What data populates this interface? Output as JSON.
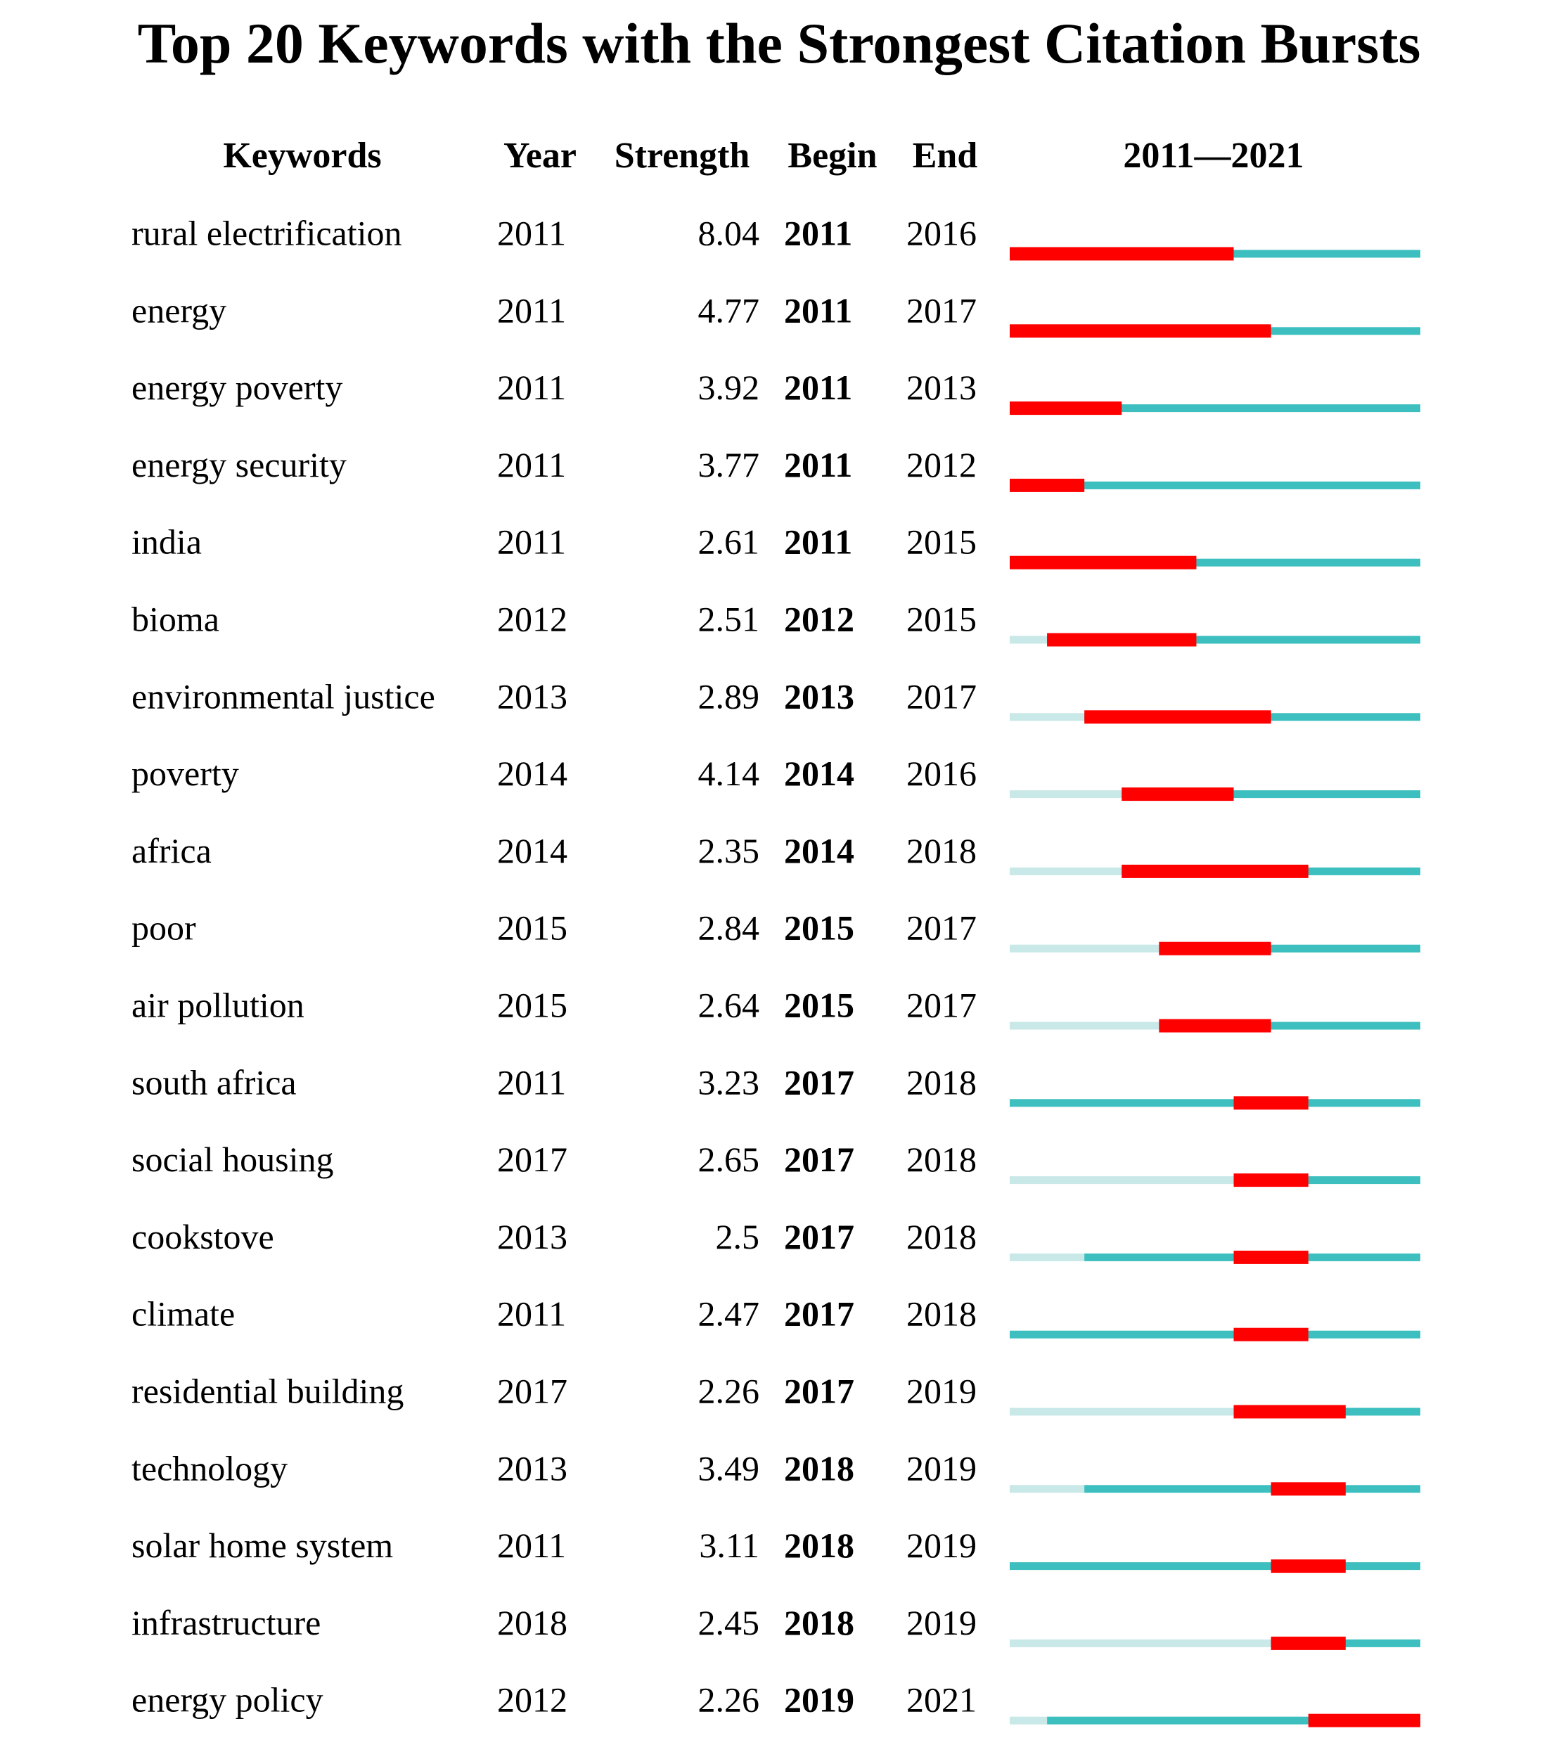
{
  "chart_data": {
    "type": "burst",
    "title": "Top 20 Keywords with the Strongest Citation Bursts",
    "headers": {
      "keyword": "Keywords",
      "year": "Year",
      "strength": "Strength",
      "begin": "Begin",
      "end": "End",
      "timeline": "2011—2021"
    },
    "xlim": [
      2011,
      2021
    ],
    "colors": {
      "burst": "#ff0000",
      "active": "#3dbfbf",
      "inactive": "#c9e8e8"
    },
    "rows": [
      {
        "keyword": "rural electrification",
        "year": 2011,
        "strength": 8.04,
        "begin": 2011,
        "end": 2016
      },
      {
        "keyword": "energy",
        "year": 2011,
        "strength": 4.77,
        "begin": 2011,
        "end": 2017
      },
      {
        "keyword": "energy poverty",
        "year": 2011,
        "strength": 3.92,
        "begin": 2011,
        "end": 2013
      },
      {
        "keyword": "energy security",
        "year": 2011,
        "strength": 3.77,
        "begin": 2011,
        "end": 2012
      },
      {
        "keyword": "india",
        "year": 2011,
        "strength": 2.61,
        "begin": 2011,
        "end": 2015
      },
      {
        "keyword": "bioma",
        "year": 2012,
        "strength": 2.51,
        "begin": 2012,
        "end": 2015
      },
      {
        "keyword": "environmental justice",
        "year": 2013,
        "strength": 2.89,
        "begin": 2013,
        "end": 2017
      },
      {
        "keyword": "poverty",
        "year": 2014,
        "strength": 4.14,
        "begin": 2014,
        "end": 2016
      },
      {
        "keyword": "africa",
        "year": 2014,
        "strength": 2.35,
        "begin": 2014,
        "end": 2018
      },
      {
        "keyword": "poor",
        "year": 2015,
        "strength": 2.84,
        "begin": 2015,
        "end": 2017
      },
      {
        "keyword": "air pollution",
        "year": 2015,
        "strength": 2.64,
        "begin": 2015,
        "end": 2017
      },
      {
        "keyword": "south africa",
        "year": 2011,
        "strength": 3.23,
        "begin": 2017,
        "end": 2018
      },
      {
        "keyword": "social housing",
        "year": 2017,
        "strength": 2.65,
        "begin": 2017,
        "end": 2018
      },
      {
        "keyword": "cookstove",
        "year": 2013,
        "strength": 2.5,
        "begin": 2017,
        "end": 2018
      },
      {
        "keyword": "climate",
        "year": 2011,
        "strength": 2.47,
        "begin": 2017,
        "end": 2018
      },
      {
        "keyword": "residential building",
        "year": 2017,
        "strength": 2.26,
        "begin": 2017,
        "end": 2019
      },
      {
        "keyword": "technology",
        "year": 2013,
        "strength": 3.49,
        "begin": 2018,
        "end": 2019
      },
      {
        "keyword": "solar home system",
        "year": 2011,
        "strength": 3.11,
        "begin": 2018,
        "end": 2019
      },
      {
        "keyword": "infrastructure",
        "year": 2018,
        "strength": 2.45,
        "begin": 2018,
        "end": 2019
      },
      {
        "keyword": "energy policy",
        "year": 2012,
        "strength": 2.26,
        "begin": 2019,
        "end": 2021
      }
    ]
  }
}
